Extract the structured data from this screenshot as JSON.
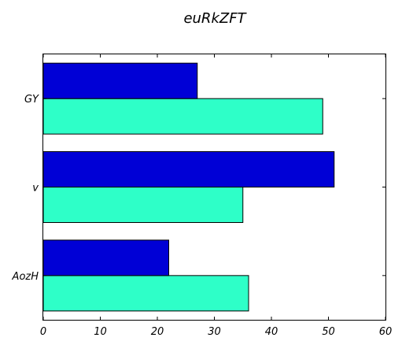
{
  "chart_data": {
    "type": "bar",
    "orientation": "horizontal",
    "title": "euRkZFT",
    "xlabel": "",
    "ylabel": "",
    "categories": [
      "AozH",
      "v",
      "GY"
    ],
    "series": [
      {
        "color": "#2effc8",
        "values": [
          36,
          35,
          49
        ]
      },
      {
        "color": "#0000d6",
        "values": [
          22,
          51,
          27
        ]
      }
    ],
    "xlim": [
      0,
      60
    ],
    "xticks": [
      0,
      10,
      20,
      30,
      40,
      50,
      60
    ],
    "grid": false,
    "legend": "none"
  }
}
